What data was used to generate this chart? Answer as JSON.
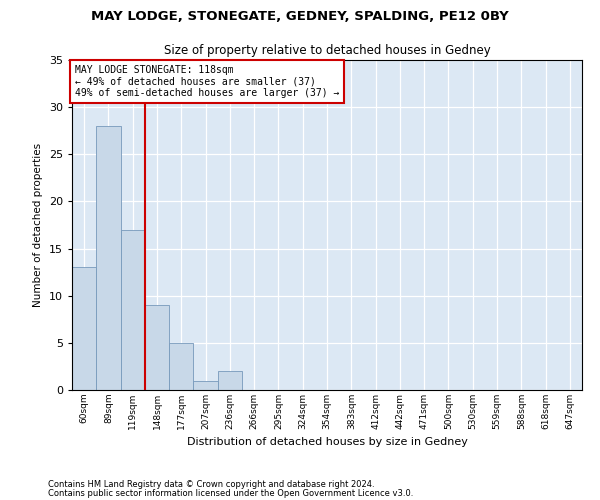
{
  "title1": "MAY LODGE, STONEGATE, GEDNEY, SPALDING, PE12 0BY",
  "title2": "Size of property relative to detached houses in Gedney",
  "xlabel": "Distribution of detached houses by size in Gedney",
  "ylabel": "Number of detached properties",
  "footnote1": "Contains HM Land Registry data © Crown copyright and database right 2024.",
  "footnote2": "Contains public sector information licensed under the Open Government Licence v3.0.",
  "annotation_line1": "MAY LODGE STONEGATE: 118sqm",
  "annotation_line2": "← 49% of detached houses are smaller (37)",
  "annotation_line3": "49% of semi-detached houses are larger (37) →",
  "bar_values": [
    13,
    28,
    17,
    9,
    5,
    1,
    2,
    0,
    0,
    0,
    0,
    0,
    0,
    0,
    0,
    0,
    0,
    0,
    0,
    0,
    0
  ],
  "bar_labels": [
    "60sqm",
    "89sqm",
    "119sqm",
    "148sqm",
    "177sqm",
    "207sqm",
    "236sqm",
    "266sqm",
    "295sqm",
    "324sqm",
    "354sqm",
    "383sqm",
    "412sqm",
    "442sqm",
    "471sqm",
    "500sqm",
    "530sqm",
    "559sqm",
    "588sqm",
    "618sqm",
    "647sqm"
  ],
  "bar_color": "#c8d8e8",
  "bar_edge_color": "#7799bb",
  "vline_x_index": 2,
  "vline_color": "#cc0000",
  "annotation_box_color": "#cc0000",
  "background_color": "#dce8f4",
  "ylim": [
    0,
    35
  ],
  "yticks": [
    0,
    5,
    10,
    15,
    20,
    25,
    30,
    35
  ]
}
